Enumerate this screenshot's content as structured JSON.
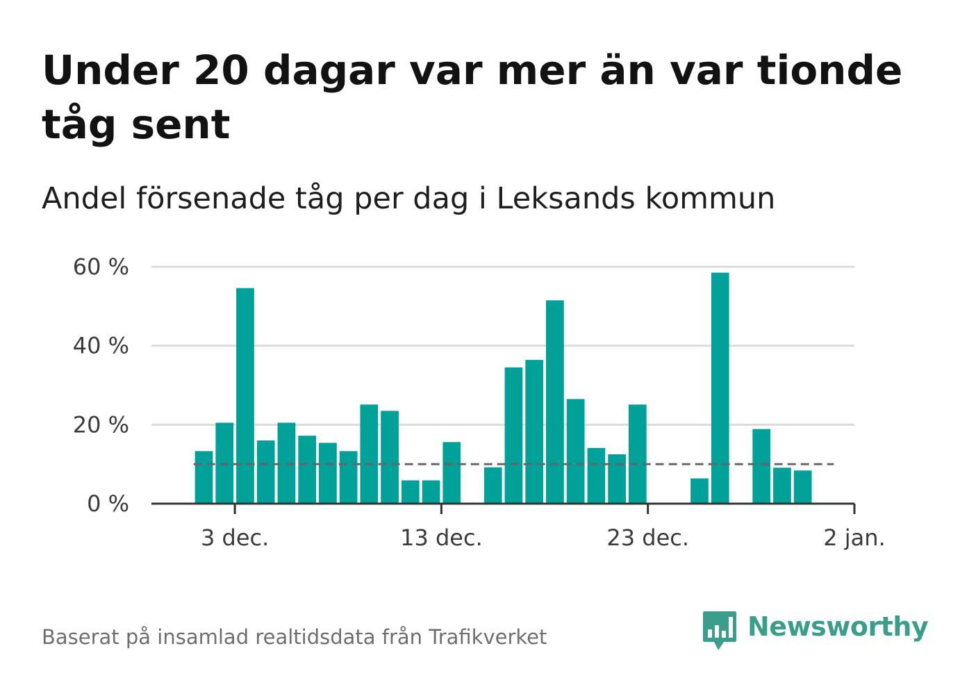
{
  "title": "Under 20 dagar var mer än var tionde tåg sent",
  "subtitle": "Andel försenade tåg per dag i Leksands kommun",
  "footer": "Baserat på insamlad realtidsdata från Trafikverket",
  "brand": {
    "name": "Newsworthy",
    "color": "#3a9e8b"
  },
  "colors": {
    "bar": "#00a199",
    "grid": "#dcdcdc",
    "axis": "#333333",
    "reference": "#666666"
  },
  "chart_data": {
    "type": "bar",
    "x_axis": "date",
    "ylim": [
      0,
      60
    ],
    "y_ticks": [
      {
        "value": 0,
        "label": "0 %"
      },
      {
        "value": 20,
        "label": "20 %"
      },
      {
        "value": 40,
        "label": "40 %"
      },
      {
        "value": 60,
        "label": "60 %"
      }
    ],
    "x_ticks": [
      {
        "date": "2023-12-03",
        "label": "3 dec."
      },
      {
        "date": "2023-12-13",
        "label": "13 dec."
      },
      {
        "date": "2023-12-23",
        "label": "23 dec."
      },
      {
        "date": "2024-01-02",
        "label": "2 jan."
      }
    ],
    "x_range": [
      "2023-11-29",
      "2024-01-02"
    ],
    "reference_line": {
      "value": 10,
      "from": "2023-12-01",
      "to": "2023-12-31",
      "style": "dashed"
    },
    "grid": true,
    "values": [
      {
        "date": "2023-12-01",
        "value": 13.3
      },
      {
        "date": "2023-12-02",
        "value": 20.5
      },
      {
        "date": "2023-12-03",
        "value": 54.6
      },
      {
        "date": "2023-12-04",
        "value": 16.0
      },
      {
        "date": "2023-12-05",
        "value": 20.5
      },
      {
        "date": "2023-12-06",
        "value": 17.2
      },
      {
        "date": "2023-12-07",
        "value": 15.4
      },
      {
        "date": "2023-12-08",
        "value": 13.3
      },
      {
        "date": "2023-12-09",
        "value": 25.1
      },
      {
        "date": "2023-12-10",
        "value": 23.5
      },
      {
        "date": "2023-12-11",
        "value": 5.9
      },
      {
        "date": "2023-12-12",
        "value": 5.9
      },
      {
        "date": "2023-12-13",
        "value": 15.6
      },
      {
        "date": "2023-12-15",
        "value": 9.2
      },
      {
        "date": "2023-12-16",
        "value": 34.5
      },
      {
        "date": "2023-12-17",
        "value": 36.4
      },
      {
        "date": "2023-12-18",
        "value": 51.5
      },
      {
        "date": "2023-12-19",
        "value": 26.5
      },
      {
        "date": "2023-12-20",
        "value": 14.1
      },
      {
        "date": "2023-12-21",
        "value": 12.5
      },
      {
        "date": "2023-12-22",
        "value": 25.1
      },
      {
        "date": "2023-12-25",
        "value": 6.4
      },
      {
        "date": "2023-12-26",
        "value": 58.5
      },
      {
        "date": "2023-12-28",
        "value": 18.9
      },
      {
        "date": "2023-12-29",
        "value": 9.1
      },
      {
        "date": "2023-12-30",
        "value": 8.4
      }
    ]
  }
}
